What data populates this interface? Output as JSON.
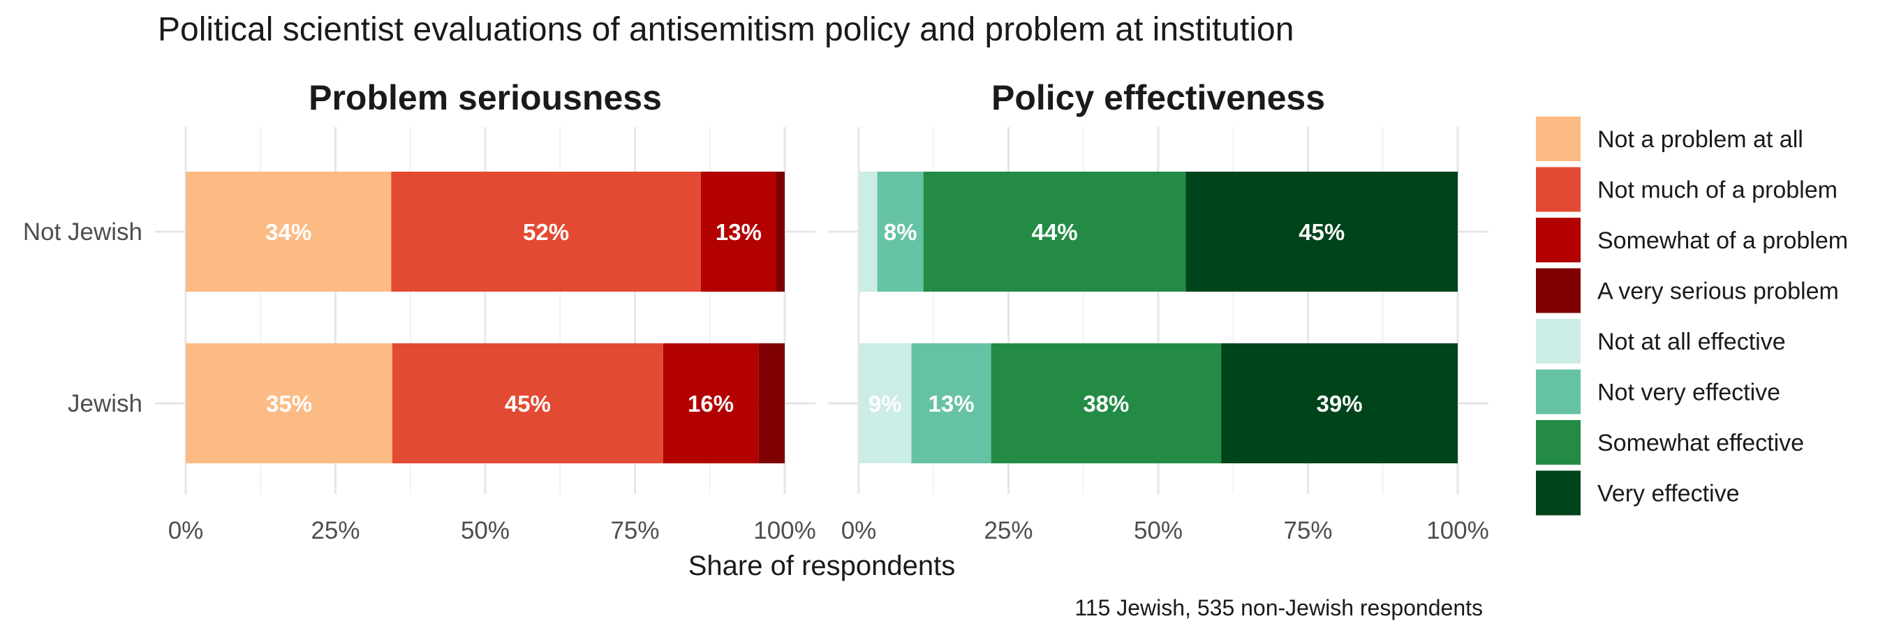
{
  "chart_data": {
    "type": "bar",
    "orientation": "horizontal",
    "stacked": true,
    "percent_scale": true,
    "title": "Political scientist evaluations of antisemitism policy and problem at institution",
    "xlabel": "Share of respondents",
    "caption": "115 Jewish, 535 non-Jewish respondents",
    "categories": [
      "Not Jewish",
      "Jewish"
    ],
    "xlim": [
      0,
      1
    ],
    "xticks": [
      "0%",
      "25%",
      "50%",
      "75%",
      "100%"
    ],
    "grid": true,
    "legend_position": "right",
    "panels": [
      {
        "title": "Problem seriousness",
        "series": [
          {
            "name": "Not a problem at all",
            "color": "#fcbb84",
            "values": [
              0.343,
              0.345
            ],
            "labels": [
              "34%",
              "35%"
            ]
          },
          {
            "name": "Not much of a problem",
            "color": "#e34a33",
            "values": [
              0.517,
              0.452
            ],
            "labels": [
              "52%",
              "45%"
            ]
          },
          {
            "name": "Somewhat of a problem",
            "color": "#b30000",
            "values": [
              0.126,
              0.159
            ],
            "labels": [
              "13%",
              "16%"
            ]
          },
          {
            "name": "A very serious problem",
            "color": "#7f0000",
            "values": [
              0.014,
              0.044
            ],
            "labels": [
              "",
              ""
            ]
          }
        ]
      },
      {
        "title": "Policy effectiveness",
        "series": [
          {
            "name": "Not at all effective",
            "color": "#ccece6",
            "values": [
              0.031,
              0.088
            ],
            "labels": [
              "",
              "9%"
            ]
          },
          {
            "name": "Not very effective",
            "color": "#66c2a4",
            "values": [
              0.077,
              0.133
            ],
            "labels": [
              "8%",
              "13%"
            ]
          },
          {
            "name": "Somewhat effective",
            "color": "#238b45",
            "values": [
              0.438,
              0.384
            ],
            "labels": [
              "44%",
              "38%"
            ]
          },
          {
            "name": "Very effective",
            "color": "#00441b",
            "values": [
              0.454,
              0.395
            ],
            "labels": [
              "45%",
              "39%"
            ]
          }
        ]
      }
    ]
  }
}
